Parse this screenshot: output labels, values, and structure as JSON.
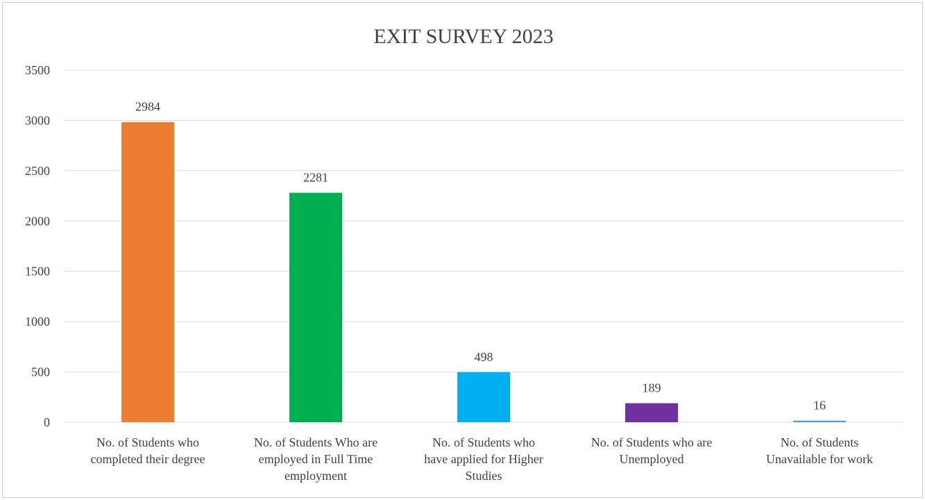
{
  "chart_data": {
    "type": "bar",
    "title": "EXIT SURVEY 2023",
    "xlabel": "",
    "ylabel": "",
    "ylim": [
      0,
      3500
    ],
    "yticks": [
      0,
      500,
      1000,
      1500,
      2000,
      2500,
      3000,
      3500
    ],
    "grid": true,
    "legend": "none",
    "categories": [
      [
        "No. of Students who",
        "completed their degree"
      ],
      [
        "No. of Students Who are",
        "employed in Full Time",
        "employment"
      ],
      [
        "No. of Students who",
        "have applied for Higher",
        "Studies"
      ],
      [
        "No. of Students who are",
        "Unemployed"
      ],
      [
        "No. of Students",
        "Unavailable for work"
      ]
    ],
    "values": [
      2984,
      2281,
      498,
      189,
      16
    ],
    "colors": [
      "#ed7d31",
      "#00b050",
      "#00b0f0",
      "#7030a0",
      "#5b9bd5"
    ]
  }
}
